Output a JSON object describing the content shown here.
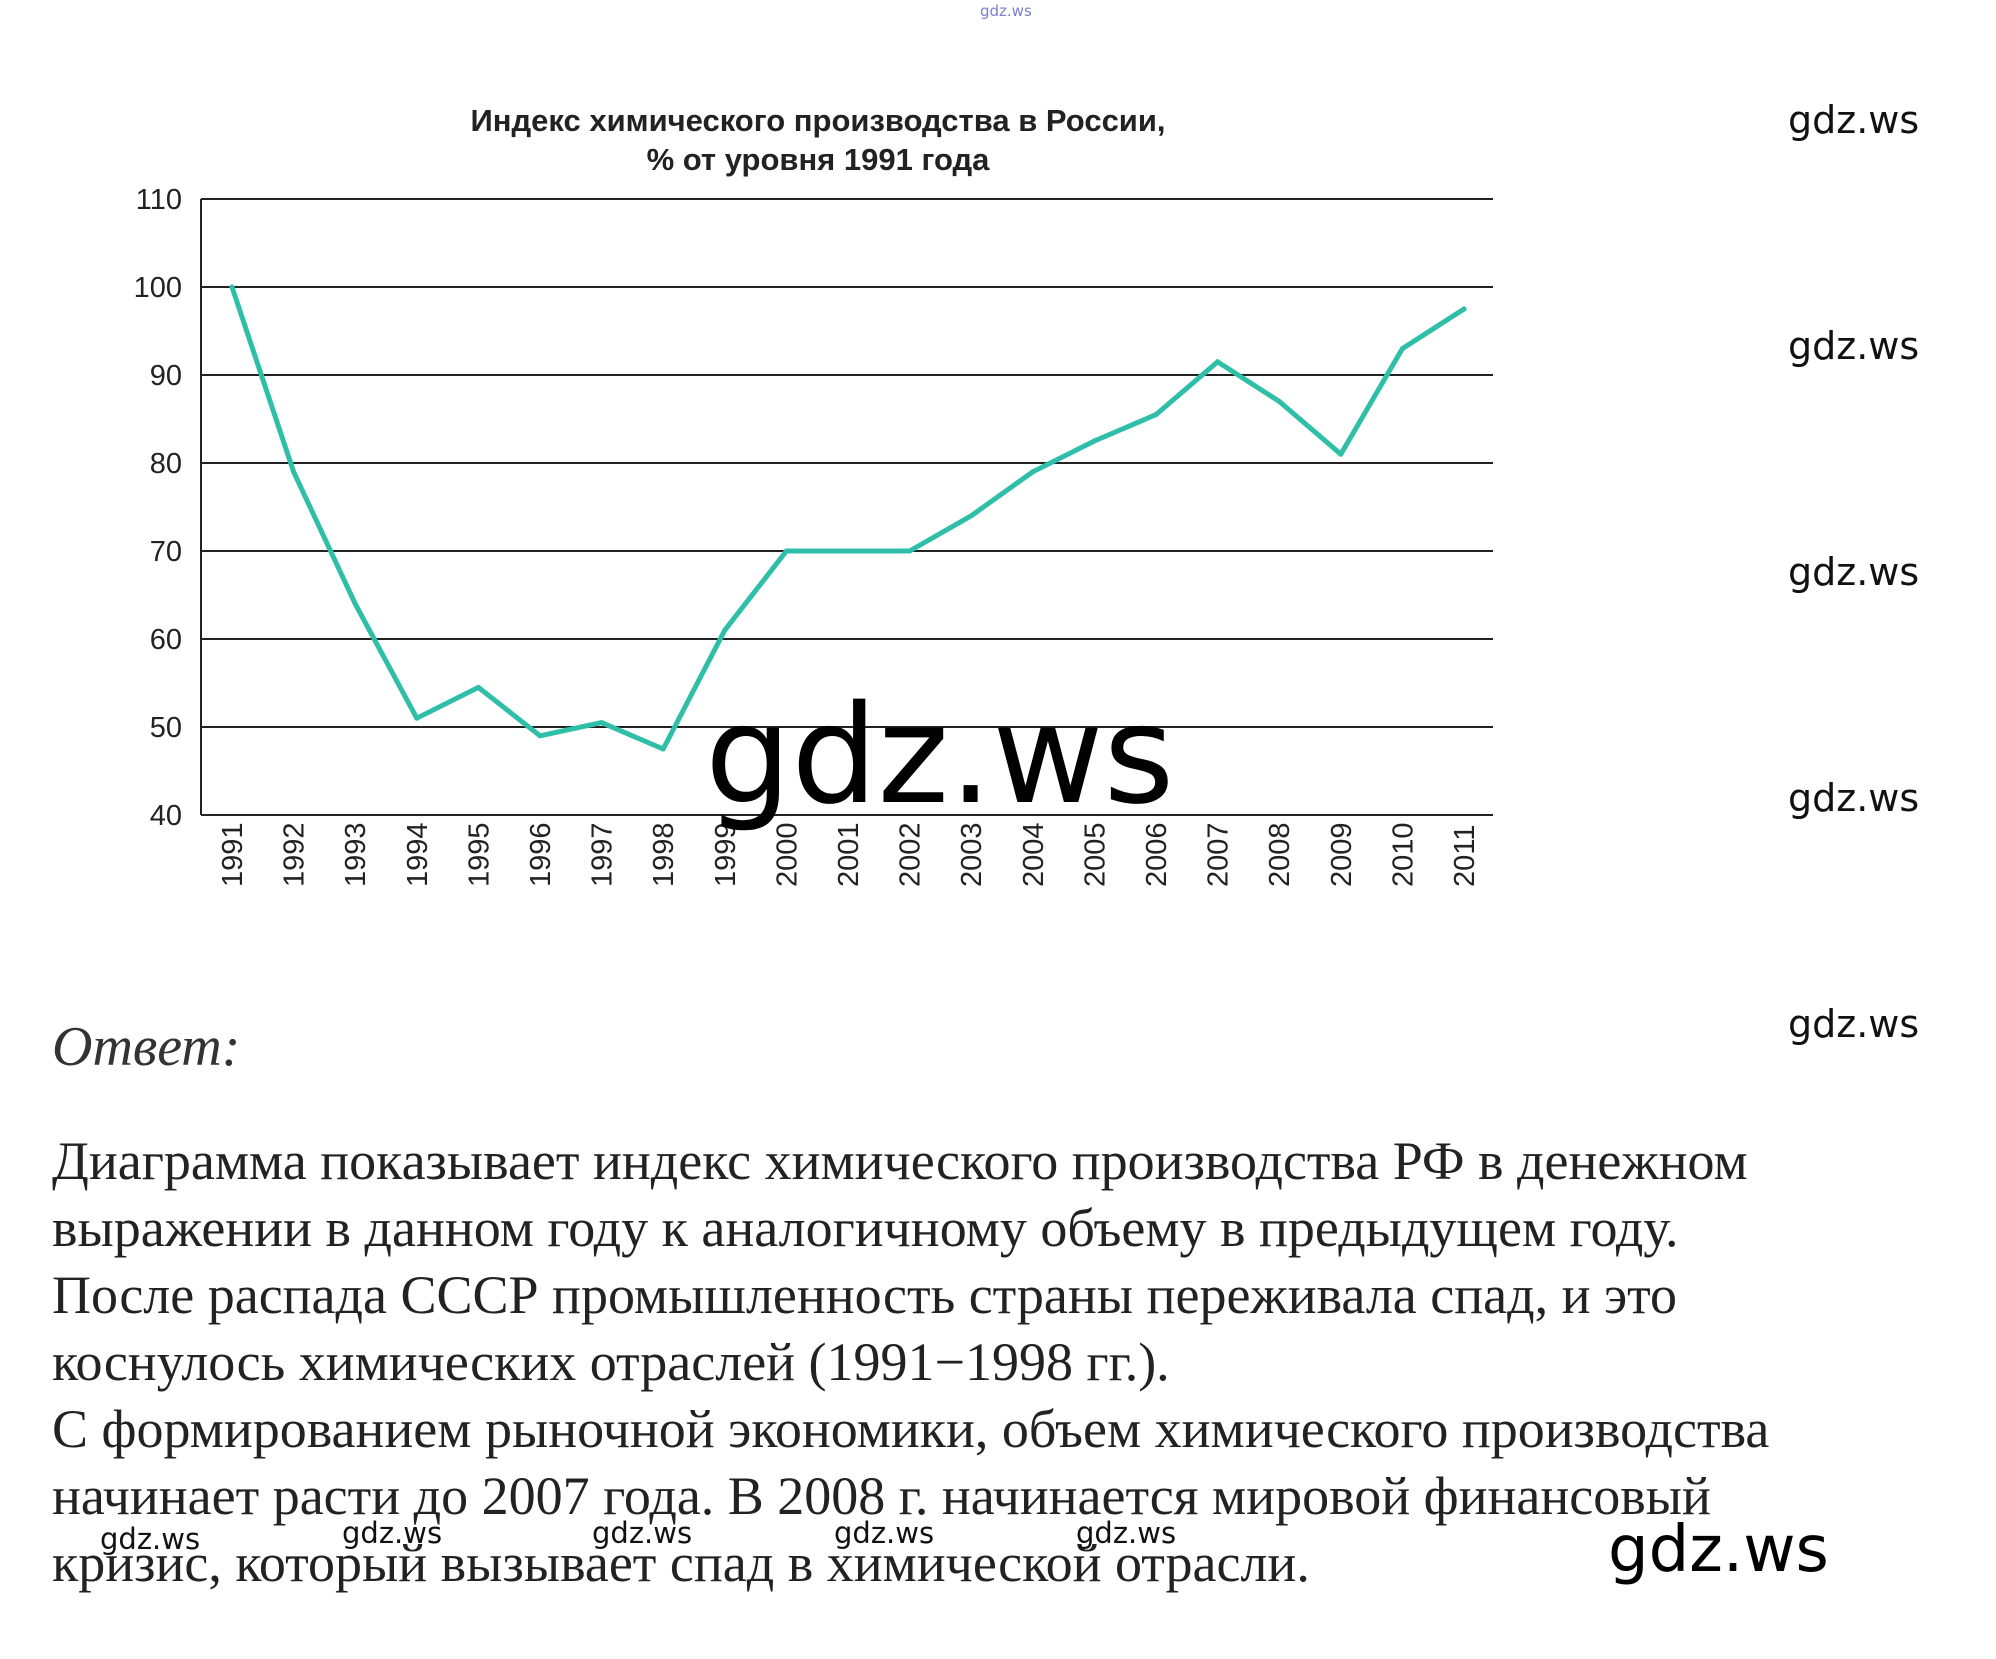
{
  "chart_data": {
    "type": "line",
    "title": [
      "Индекс химического производства в России,",
      "% от уровня 1991 года"
    ],
    "xlabel": "",
    "ylabel": "",
    "categories": [
      "1991",
      "1992",
      "1993",
      "1994",
      "1995",
      "1996",
      "1997",
      "1998",
      "1999",
      "2000",
      "2001",
      "2002",
      "2003",
      "2004",
      "2005",
      "2006",
      "2007",
      "2008",
      "2009",
      "2010",
      "2011"
    ],
    "series": [
      {
        "values": [
          100,
          79,
          64,
          51,
          54.5,
          49,
          50.5,
          47.5,
          61,
          70,
          70,
          70,
          74,
          79,
          82.5,
          85.5,
          91.5,
          87,
          81,
          93,
          97.5
        ]
      }
    ],
    "ylim": [
      40,
      110
    ],
    "yticks": [
      40,
      50,
      60,
      70,
      80,
      90,
      100,
      110
    ],
    "grid": "horizontal",
    "line_color": "#2fbfa8"
  },
  "watermarks": {
    "top": "gdz.ws",
    "right": "gdz.ws",
    "center": "gdz.ws",
    "bottom_small": "gdz.ws",
    "bottom_right": "gdz.ws"
  },
  "answer": {
    "label": "Ответ:",
    "lines": [
      "Диаграмма показывает индекс химического производства РФ в денежном",
      "выражении в данном году к аналогичному объему в предыдущем году.",
      "После распада СССР промышленность страны переживала спад, и это",
      "коснулось химических отраслей (1991−1998 гг.).",
      "С формированием рыночной экономики, объем химического производства",
      "начинает расти до 2007 года. В 2008 г. начинается мировой финансовый",
      "кризис, который вызывает спад в химической отрасли."
    ]
  }
}
